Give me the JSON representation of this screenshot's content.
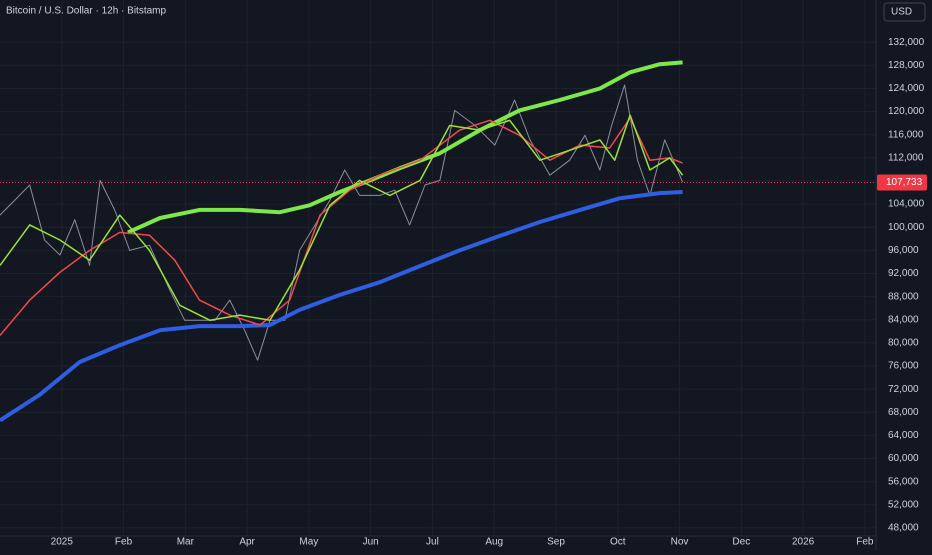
{
  "title": "Bitcoin / U.S. Dollar · 12h · Bitstamp",
  "currency": "USD",
  "chart_data": {
    "type": "line",
    "xlim": [
      -1.0,
      13.18
    ],
    "ylim": [
      46600,
      139300
    ],
    "grid": true,
    "xticks": [
      {
        "value": 0,
        "label": "2025"
      },
      {
        "value": 1,
        "label": "Feb"
      },
      {
        "value": 2,
        "label": "Mar"
      },
      {
        "value": 3,
        "label": "Apr"
      },
      {
        "value": 4,
        "label": "May"
      },
      {
        "value": 5,
        "label": "Jun"
      },
      {
        "value": 6,
        "label": "Jul"
      },
      {
        "value": 7,
        "label": "Aug"
      },
      {
        "value": 8,
        "label": "Sep"
      },
      {
        "value": 9,
        "label": "Oct"
      },
      {
        "value": 10,
        "label": "Nov"
      },
      {
        "value": 11,
        "label": "Dec"
      },
      {
        "value": 12,
        "label": "2026"
      },
      {
        "value": 13,
        "label": "Feb"
      }
    ],
    "yticks": [
      {
        "value": 48000,
        "label": "48,000"
      },
      {
        "value": 52000,
        "label": "52,000"
      },
      {
        "value": 56000,
        "label": "56,000"
      },
      {
        "value": 60000,
        "label": "60,000"
      },
      {
        "value": 64000,
        "label": "64,000"
      },
      {
        "value": 68000,
        "label": "68,000"
      },
      {
        "value": 72000,
        "label": "72,000"
      },
      {
        "value": 76000,
        "label": "76,000"
      },
      {
        "value": 80000,
        "label": "80,000"
      },
      {
        "value": 84000,
        "label": "84,000"
      },
      {
        "value": 88000,
        "label": "88,000"
      },
      {
        "value": 92000,
        "label": "92,000"
      },
      {
        "value": 96000,
        "label": "96,000"
      },
      {
        "value": 100000,
        "label": "100,000"
      },
      {
        "value": 104000,
        "label": "104,000"
      },
      {
        "value": 108000,
        "label": "108,000"
      },
      {
        "value": 112000,
        "label": "112,000"
      },
      {
        "value": 116000,
        "label": "116,000"
      },
      {
        "value": 120000,
        "label": "120,000"
      },
      {
        "value": 124000,
        "label": "124,000"
      },
      {
        "value": 128000,
        "label": "128,000"
      },
      {
        "value": 132000,
        "label": "132,000"
      }
    ],
    "series": [
      {
        "color": "#8a8f9a",
        "width": 1,
        "x": [
          -1.0,
          -0.76,
          -0.52,
          -0.28,
          -0.03,
          0.21,
          0.45,
          0.62,
          0.86,
          1.1,
          1.42,
          1.75,
          1.99,
          2.23,
          2.48,
          2.72,
          2.96,
          3.17,
          3.37,
          3.61,
          3.85,
          4.1,
          4.34,
          4.58,
          4.82,
          5.15,
          5.39,
          5.63,
          5.88,
          6.12,
          6.36,
          6.69,
          7.01,
          7.33,
          7.58,
          7.9,
          8.22,
          8.47,
          8.71,
          8.9,
          9.11,
          9.32,
          9.52,
          9.76,
          10.05
        ],
        "values": [
          102100,
          104700,
          107300,
          97800,
          95200,
          101300,
          93400,
          108100,
          102900,
          96000,
          96900,
          89100,
          83900,
          83900,
          83900,
          87400,
          82200,
          77000,
          83900,
          83900,
          96000,
          100400,
          104700,
          109900,
          105500,
          105500,
          106400,
          100400,
          107300,
          108100,
          120200,
          117600,
          114200,
          122000,
          115100,
          109000,
          111600,
          115900,
          109900,
          117600,
          124600,
          111600,
          105500,
          115100,
          107800
        ]
      },
      {
        "color": "#7ee84a",
        "width": 4,
        "x": [
          1.07,
          1.59,
          2.23,
          2.88,
          3.53,
          4.01,
          4.5,
          4.99,
          5.47,
          6.12,
          6.77,
          7.41,
          8.06,
          8.71,
          9.2,
          9.68,
          10.05
        ],
        "values": [
          99100,
          101600,
          103000,
          103000,
          102600,
          103800,
          106100,
          108100,
          110200,
          112800,
          116800,
          120200,
          122000,
          124000,
          126800,
          128200,
          128500
        ]
      },
      {
        "color": "#2f5fe0",
        "width": 4,
        "x": [
          -1.0,
          -0.36,
          0.29,
          0.94,
          1.59,
          2.23,
          2.88,
          3.37,
          3.85,
          4.5,
          5.15,
          5.8,
          6.44,
          7.09,
          7.74,
          8.39,
          9.03,
          9.68,
          10.05
        ],
        "values": [
          66600,
          71000,
          76700,
          79600,
          82200,
          82900,
          82900,
          83100,
          85700,
          88300,
          90500,
          93300,
          96000,
          98500,
          100900,
          103000,
          105000,
          105900,
          106100
        ]
      },
      {
        "color": "#f04a4a",
        "width": 1.5,
        "x": [
          -1.0,
          -0.52,
          -0.03,
          0.45,
          0.94,
          1.42,
          1.83,
          2.23,
          2.72,
          3.21,
          3.69,
          4.18,
          4.66,
          5.15,
          5.8,
          6.44,
          6.93,
          7.41,
          7.9,
          8.39,
          8.87,
          9.2,
          9.52,
          9.84,
          10.05
        ],
        "values": [
          81300,
          87400,
          92200,
          96000,
          99100,
          98600,
          94300,
          87400,
          84800,
          83100,
          87400,
          102100,
          106400,
          109000,
          111600,
          116800,
          118500,
          115900,
          111600,
          114200,
          113700,
          118900,
          111600,
          112000,
          111100
        ]
      },
      {
        "color": "#9be23a",
        "width": 1.5,
        "x": [
          -1.0,
          -0.52,
          -0.03,
          0.45,
          0.94,
          1.42,
          1.91,
          2.4,
          2.88,
          3.37,
          3.85,
          4.34,
          4.82,
          5.31,
          5.8,
          6.28,
          6.77,
          7.25,
          7.74,
          8.22,
          8.71,
          8.95,
          9.2,
          9.52,
          9.84,
          10.05
        ],
        "values": [
          93400,
          100400,
          97800,
          94300,
          102100,
          96000,
          86500,
          83900,
          84800,
          83900,
          92600,
          103800,
          108100,
          105500,
          108100,
          117600,
          116800,
          118500,
          111600,
          113300,
          115100,
          111600,
          119400,
          109900,
          112000,
          109000
        ]
      }
    ],
    "price_line": {
      "color": "#f23645",
      "values": [
        107733
      ],
      "value_labels": [
        "107,733"
      ]
    }
  }
}
